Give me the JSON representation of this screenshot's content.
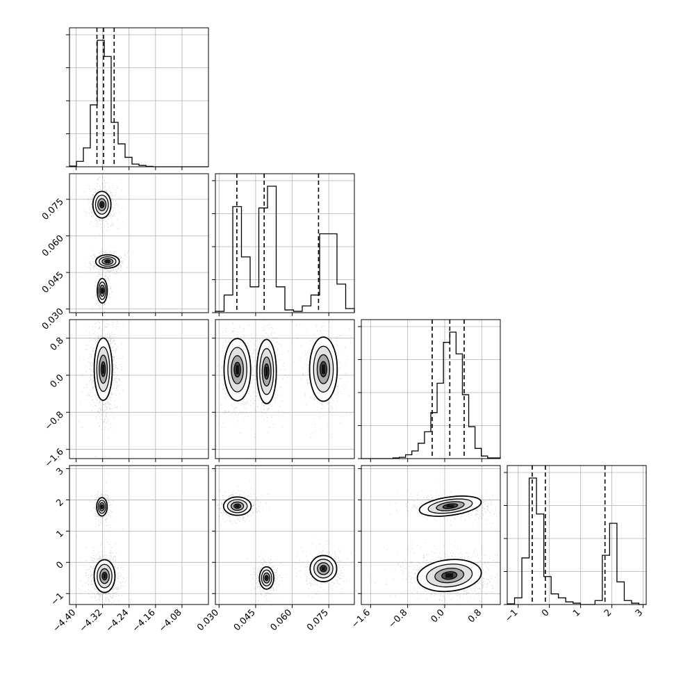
{
  "chart_data": {
    "type": "corner",
    "grid": true,
    "colors": {
      "ink": "#000000",
      "grid": "#b0b0b0",
      "scatter": "#000000"
    },
    "variables": [
      {
        "range": [
          -4.42,
          -4.0
        ],
        "ticks": [
          "-4.40",
          "-4.32",
          "-4.24",
          "-4.16",
          "-4.08"
        ],
        "tick_values": [
          -4.4,
          -4.32,
          -4.24,
          -4.16,
          -4.08
        ],
        "quantiles": [
          -4.337,
          -4.317,
          -4.285
        ],
        "hist": [
          0.5,
          4,
          14,
          46,
          94,
          82,
          33,
          17,
          7,
          2,
          1,
          0.3,
          0,
          0,
          0,
          0,
          0,
          0,
          0,
          0
        ]
      },
      {
        "range": [
          0.0285,
          0.0855
        ],
        "ticks": [
          "0.030",
          "0.045",
          "0.060",
          "0.075"
        ],
        "tick_values": [
          0.03,
          0.045,
          0.06,
          0.075
        ],
        "quantiles": [
          0.0373,
          0.0485,
          0.0708
        ],
        "hist": [
          1,
          13,
          78,
          41,
          19,
          77,
          93,
          19,
          2,
          1,
          5,
          13,
          58,
          58,
          21,
          3
        ]
      },
      {
        "range": [
          -1.8,
          1.2
        ],
        "ticks": [
          "-1.6",
          "-0.8",
          "0.0",
          "0.8"
        ],
        "tick_values": [
          -1.6,
          -0.8,
          0.0,
          0.8
        ],
        "quantiles": [
          -0.27,
          0.11,
          0.42
        ],
        "hist": [
          0,
          0,
          0,
          0,
          0,
          0.5,
          1,
          3,
          6,
          12,
          21,
          36,
          59,
          91,
          99,
          82,
          50,
          25,
          8,
          2,
          0.5,
          0.5
        ]
      },
      {
        "range": [
          -1.35,
          3.1
        ],
        "ticks": [
          "-1",
          "0",
          "1",
          "2",
          "3"
        ],
        "tick_values": [
          -1,
          0,
          1,
          2,
          3
        ],
        "quantiles": [
          -0.55,
          -0.13,
          1.78
        ],
        "hist": [
          0.5,
          5,
          35,
          95,
          68,
          21,
          8,
          5,
          2,
          1,
          0,
          0,
          3,
          37,
          61,
          17,
          3,
          1,
          0
        ]
      }
    ],
    "clusters": {
      "x0": [
        -4.322
      ],
      "x1": [
        0.0375,
        0.0495,
        0.0728
      ],
      "x2": [
        0.12
      ],
      "x3": [
        1.8,
        -0.44
      ]
    }
  }
}
